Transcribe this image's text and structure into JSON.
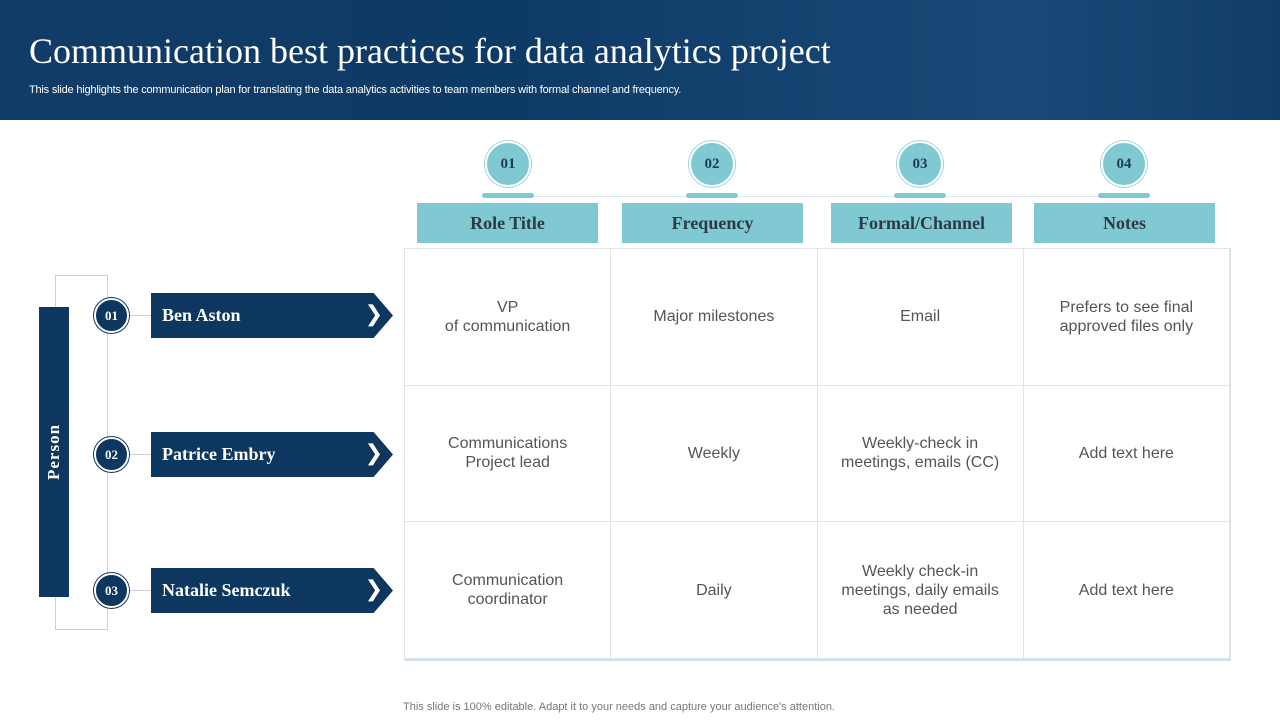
{
  "header": {
    "title": "Communication best practices for data analytics project",
    "subtitle": "This slide highlights the communication plan for translating the data analytics activities to team members with formal channel and frequency."
  },
  "columns": [
    {
      "num": "01",
      "label": "Role Title"
    },
    {
      "num": "02",
      "label": "Frequency"
    },
    {
      "num": "03",
      "label": "Formal/Channel"
    },
    {
      "num": "04",
      "label": "Notes"
    }
  ],
  "side_label": "Person",
  "people": [
    {
      "num": "01",
      "name": "Ben Aston"
    },
    {
      "num": "02",
      "name": "Patrice Embry"
    },
    {
      "num": "03",
      "name": "Natalie Semczuk"
    }
  ],
  "rows": [
    [
      "VP\nof communication",
      "Major milestones",
      "Email",
      "Prefers to see final\napproved files only"
    ],
    [
      "Communications\nProject lead",
      "Weekly",
      "Weekly-check  in\nmeetings, emails (CC)",
      "Add text here"
    ],
    [
      "Communication\ncoordinator",
      "Daily",
      "Weekly check-in\nmeetings, daily emails\nas needed",
      "Add text here"
    ]
  ],
  "footer": "This slide is 100% editable. Adapt it to your needs and capture your audience's attention.",
  "colors": {
    "navy": "#0e3760",
    "teal": "#80c9d2"
  }
}
